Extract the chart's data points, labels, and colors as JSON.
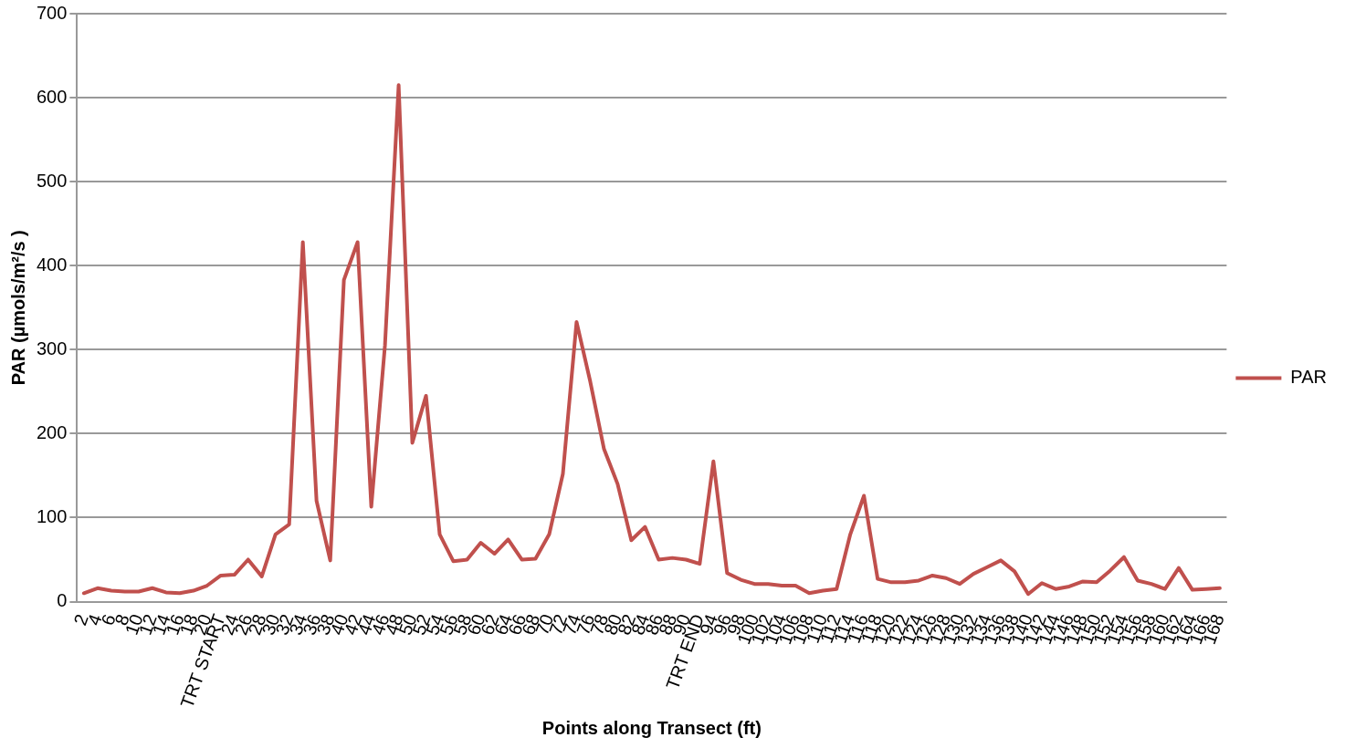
{
  "chart_data": {
    "type": "line",
    "xlabel": "Points along Transect (ft)",
    "ylabel": "PAR (µmols/m²/s )",
    "categories": [
      "2",
      "4",
      "6",
      "8",
      "10",
      "12",
      "14",
      "16",
      "18",
      "20",
      "TRT START",
      "24",
      "26",
      "28",
      "30",
      "32",
      "34",
      "36",
      "38",
      "40",
      "42",
      "44",
      "46",
      "48",
      "50",
      "52",
      "54",
      "56",
      "58",
      "60",
      "62",
      "64",
      "66",
      "68",
      "70",
      "72",
      "74",
      "76",
      "78",
      "80",
      "82",
      "84",
      "86",
      "88",
      "90",
      "TRT END",
      "94",
      "96",
      "98",
      "100",
      "102",
      "104",
      "106",
      "108",
      "110",
      "112",
      "114",
      "116",
      "118",
      "120",
      "122",
      "124",
      "126",
      "128",
      "130",
      "132",
      "134",
      "136",
      "138",
      "140",
      "142",
      "144",
      "146",
      "148",
      "150",
      "152",
      "154",
      "156",
      "158",
      "160",
      "162",
      "164",
      "166",
      "168"
    ],
    "series": [
      {
        "name": "PAR",
        "color": "#c0504d",
        "values": [
          10,
          16,
          13,
          12,
          12,
          16,
          11,
          10,
          13,
          19,
          31,
          32,
          50,
          30,
          80,
          92,
          428,
          120,
          49,
          383,
          428,
          113,
          305,
          615,
          189,
          245,
          80,
          48,
          50,
          70,
          57,
          74,
          50,
          51,
          80,
          152,
          333,
          262,
          182,
          140,
          73,
          89,
          50,
          52,
          50,
          45,
          167,
          34,
          26,
          21,
          21,
          19,
          19,
          10,
          13,
          15,
          80,
          126,
          27,
          23,
          23,
          25,
          31,
          28,
          21,
          33,
          41,
          49,
          36,
          9,
          22,
          15,
          18,
          24,
          23,
          37,
          53,
          25,
          21,
          15,
          40,
          14,
          15,
          16
        ]
      }
    ],
    "ylim": [
      0,
      700
    ],
    "yticks": [
      0,
      100,
      200,
      300,
      400,
      500,
      600,
      700
    ],
    "grid": "y",
    "legend": "right",
    "marker": "none",
    "line_style": "solid"
  }
}
